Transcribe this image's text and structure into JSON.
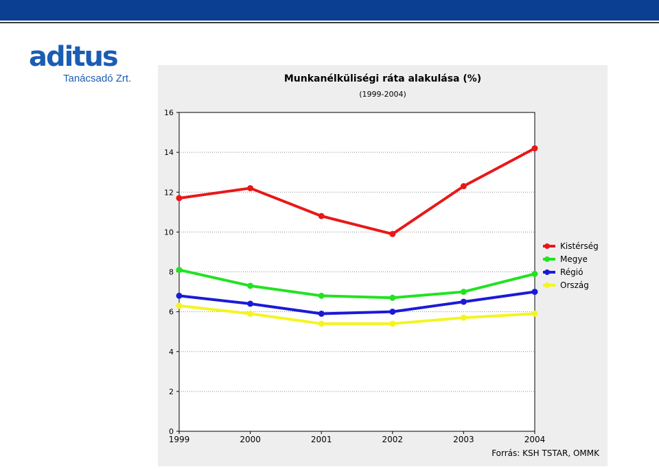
{
  "logo": {
    "word": "aditus",
    "subtitle": "Tanácsadó Zrt."
  },
  "chart_data": {
    "type": "line",
    "title": "Munkanélküliségi ráta alakulása (%)",
    "subtitle": "(1999-2004)",
    "categories": [
      "1999",
      "2000",
      "2001",
      "2002",
      "2003",
      "2004"
    ],
    "ylim": [
      0,
      16
    ],
    "yticks": [
      0,
      2,
      4,
      6,
      8,
      10,
      12,
      14,
      16
    ],
    "grid": true,
    "legend_position": "right",
    "series": [
      {
        "name": "Kistérség",
        "color": "#e81818",
        "values": [
          11.7,
          12.2,
          10.8,
          9.9,
          12.3,
          14.2
        ]
      },
      {
        "name": "Megye",
        "color": "#22e222",
        "values": [
          8.1,
          7.3,
          6.8,
          6.7,
          7.0,
          7.9
        ]
      },
      {
        "name": "Régió",
        "color": "#1a1ad8",
        "values": [
          6.8,
          6.4,
          5.9,
          6.0,
          6.5,
          7.0
        ]
      },
      {
        "name": "Ország",
        "color": "#f4f420",
        "values": [
          6.3,
          5.9,
          5.4,
          5.4,
          5.7,
          5.9
        ]
      }
    ],
    "source": "Forrás: KSH TSTAR, OMMK"
  },
  "colors": {
    "header_bar": "#0a3f91",
    "logo": "#1b5db3",
    "panel_bg": "#eeeeee"
  }
}
